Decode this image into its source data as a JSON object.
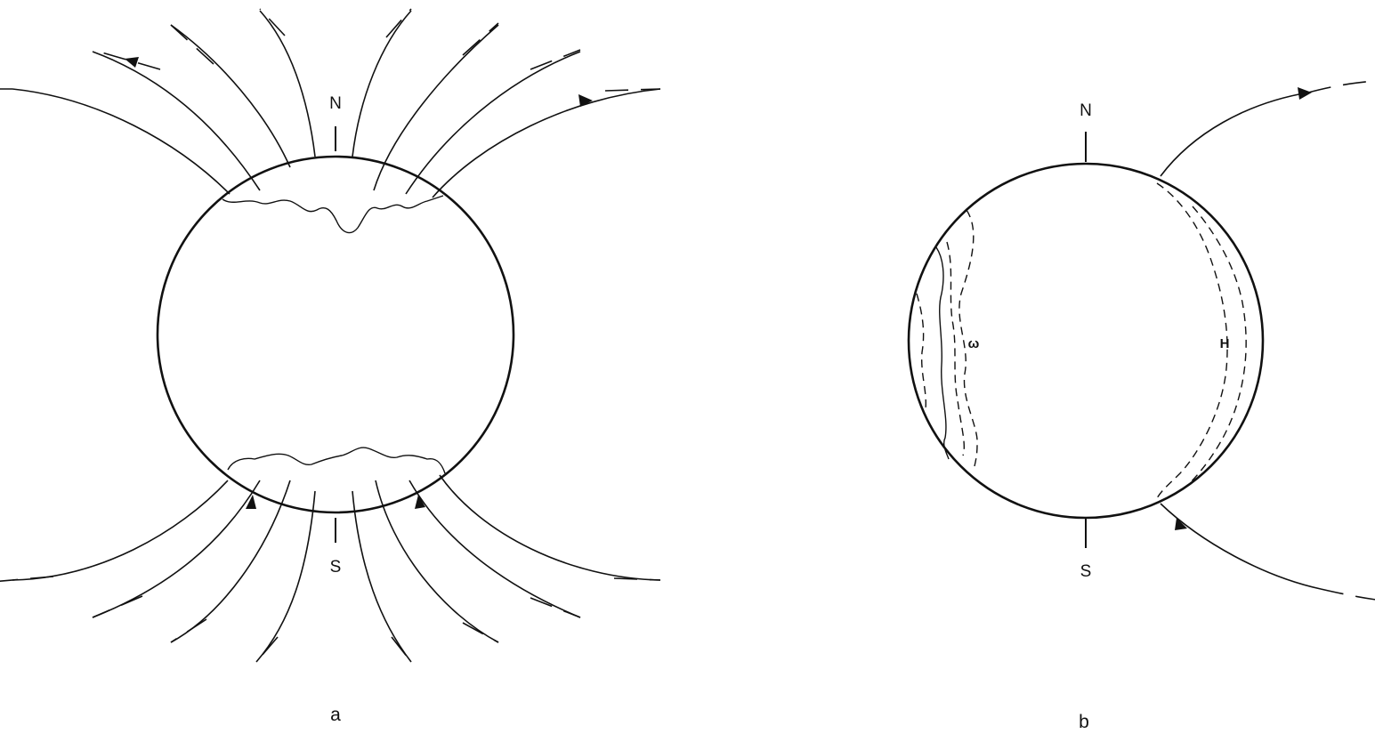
{
  "figure": {
    "panel_a": {
      "label": "a",
      "north_label": "N",
      "south_label": "S"
    },
    "panel_b": {
      "label": "b",
      "north_label": "N",
      "south_label": "S",
      "west_region_label": "ω",
      "east_region_label": "H"
    }
  }
}
